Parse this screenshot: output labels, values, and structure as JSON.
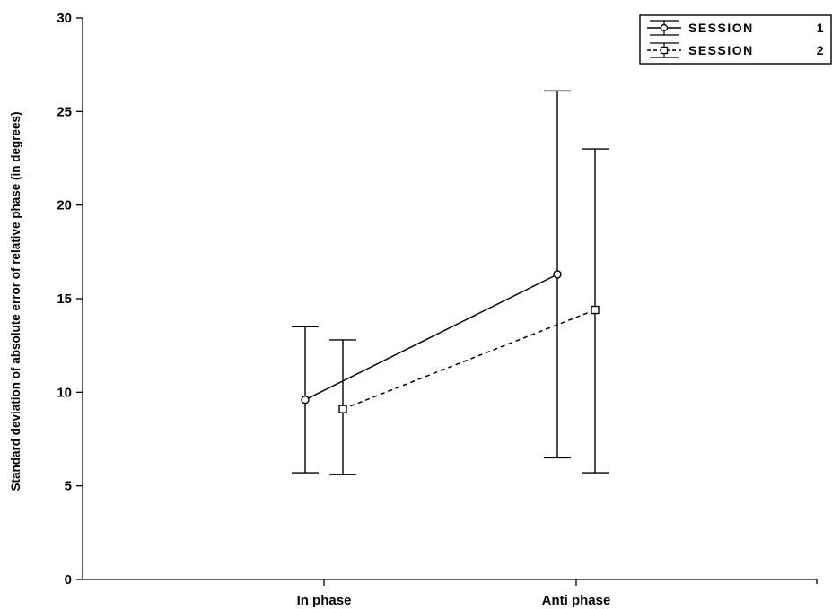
{
  "chart_data": {
    "type": "line",
    "title": "",
    "xlabel": "",
    "ylabel": "Standard deviation of absolute error of relative phase (in degrees)",
    "ylim": [
      0,
      30
    ],
    "yticks": [
      0,
      5,
      10,
      15,
      20,
      25,
      30
    ],
    "categories": [
      "In phase",
      "Anti phase"
    ],
    "grid": false,
    "legend_position": "top-right",
    "series": [
      {
        "name": "SESSION",
        "legend_number": "1",
        "line_style": "solid",
        "marker": "circle",
        "values": [
          9.6,
          16.3
        ],
        "error_low": [
          5.7,
          6.5
        ],
        "error_high": [
          13.5,
          26.1
        ]
      },
      {
        "name": "SESSION",
        "legend_number": "2",
        "line_style": "dashed",
        "marker": "square",
        "values": [
          9.1,
          14.4
        ],
        "error_low": [
          5.6,
          5.7
        ],
        "error_high": [
          12.8,
          23.0
        ]
      }
    ],
    "colors": {
      "axis": "#000000",
      "line": "#000000",
      "background": "#ffffff"
    }
  }
}
